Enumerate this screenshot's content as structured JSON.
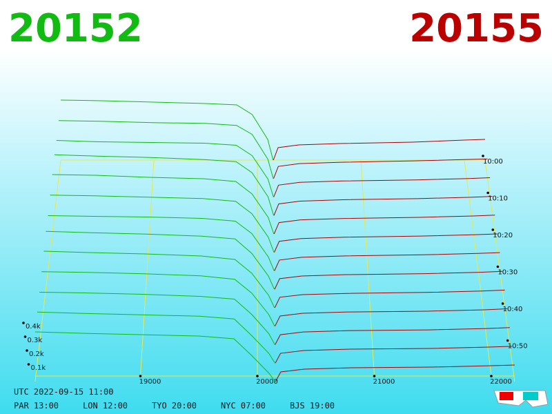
{
  "header": {
    "bid": "20152",
    "ask": "20155"
  },
  "chart_data": {
    "type": "depth3d",
    "bid_color": "#11bb11",
    "ask_color": "#aa0000",
    "frame_color": "#e8e84a",
    "xlim": [
      18100,
      22200
    ],
    "xticks": [
      19000,
      20000,
      21000,
      22000
    ],
    "zticks": [
      {
        "value": 100,
        "label": "0.1k"
      },
      {
        "value": 200,
        "label": "0.2k"
      },
      {
        "value": 300,
        "label": "0.3k"
      },
      {
        "value": 400,
        "label": "0.4k"
      }
    ],
    "time_ticks": [
      "10:00",
      "10:10",
      "10:20",
      "10:30",
      "10:40",
      "10:50"
    ],
    "bid_x": [
      18100,
      18500,
      19000,
      19500,
      19800,
      19950,
      20100,
      20152
    ],
    "ask_x": [
      20155,
      20200,
      20400,
      20800,
      21500,
      22000,
      22200
    ],
    "snapshots": [
      {
        "bids": [
          435,
          430,
          420,
          410,
          400,
          330,
          150,
          0
        ],
        "asks": [
          0,
          90,
          110,
          120,
          130,
          145,
          150
        ]
      },
      {
        "bids": [
          420,
          415,
          405,
          400,
          385,
          320,
          140,
          0
        ],
        "asks": [
          0,
          88,
          108,
          118,
          128,
          138,
          142
        ]
      },
      {
        "bids": [
          410,
          400,
          395,
          390,
          375,
          300,
          130,
          0
        ],
        "asks": [
          0,
          86,
          106,
          116,
          124,
          134,
          140
        ]
      },
      {
        "bids": [
          440,
          430,
          420,
          405,
          390,
          310,
          135,
          0
        ],
        "asks": [
          0,
          84,
          104,
          114,
          122,
          132,
          138
        ]
      },
      {
        "bids": [
          430,
          425,
          410,
          400,
          380,
          290,
          120,
          0
        ],
        "asks": [
          0,
          82,
          102,
          112,
          120,
          130,
          136
        ]
      },
      {
        "bids": [
          415,
          410,
          400,
          390,
          370,
          280,
          110,
          0
        ],
        "asks": [
          0,
          80,
          100,
          110,
          118,
          128,
          134
        ]
      },
      {
        "bids": [
          400,
          395,
          390,
          380,
          360,
          270,
          100,
          0
        ],
        "asks": [
          0,
          78,
          98,
          108,
          116,
          126,
          132
        ]
      },
      {
        "bids": [
          420,
          410,
          400,
          385,
          365,
          260,
          95,
          0
        ],
        "asks": [
          0,
          77,
          96,
          106,
          113,
          123,
          130
        ]
      },
      {
        "bids": [
          410,
          400,
          390,
          375,
          350,
          250,
          90,
          0
        ],
        "asks": [
          0,
          76,
          95,
          104,
          111,
          121,
          128
        ]
      },
      {
        "bids": [
          395,
          390,
          380,
          365,
          340,
          240,
          85,
          0
        ],
        "asks": [
          0,
          74,
          94,
          103,
          109,
          119,
          126
        ]
      },
      {
        "bids": [
          380,
          375,
          365,
          350,
          330,
          220,
          80,
          0
        ],
        "asks": [
          0,
          72,
          92,
          102,
          107,
          117,
          124
        ]
      },
      {
        "bids": [
          370,
          360,
          350,
          340,
          320,
          200,
          70,
          0
        ],
        "asks": [
          0,
          71,
          91,
          101,
          106,
          116,
          122
        ]
      },
      {
        "bids": [
          360,
          350,
          340,
          330,
          310,
          190,
          60,
          0
        ],
        "asks": [
          0,
          70,
          90,
          100,
          105,
          115,
          120
        ]
      }
    ]
  },
  "footer": {
    "utc": "UTC 2022-09-15 11:00",
    "zones": [
      "PAR 13:00",
      "LON 12:00",
      "TYO 20:00",
      "NYC 07:00",
      "BJS 19:00"
    ]
  }
}
